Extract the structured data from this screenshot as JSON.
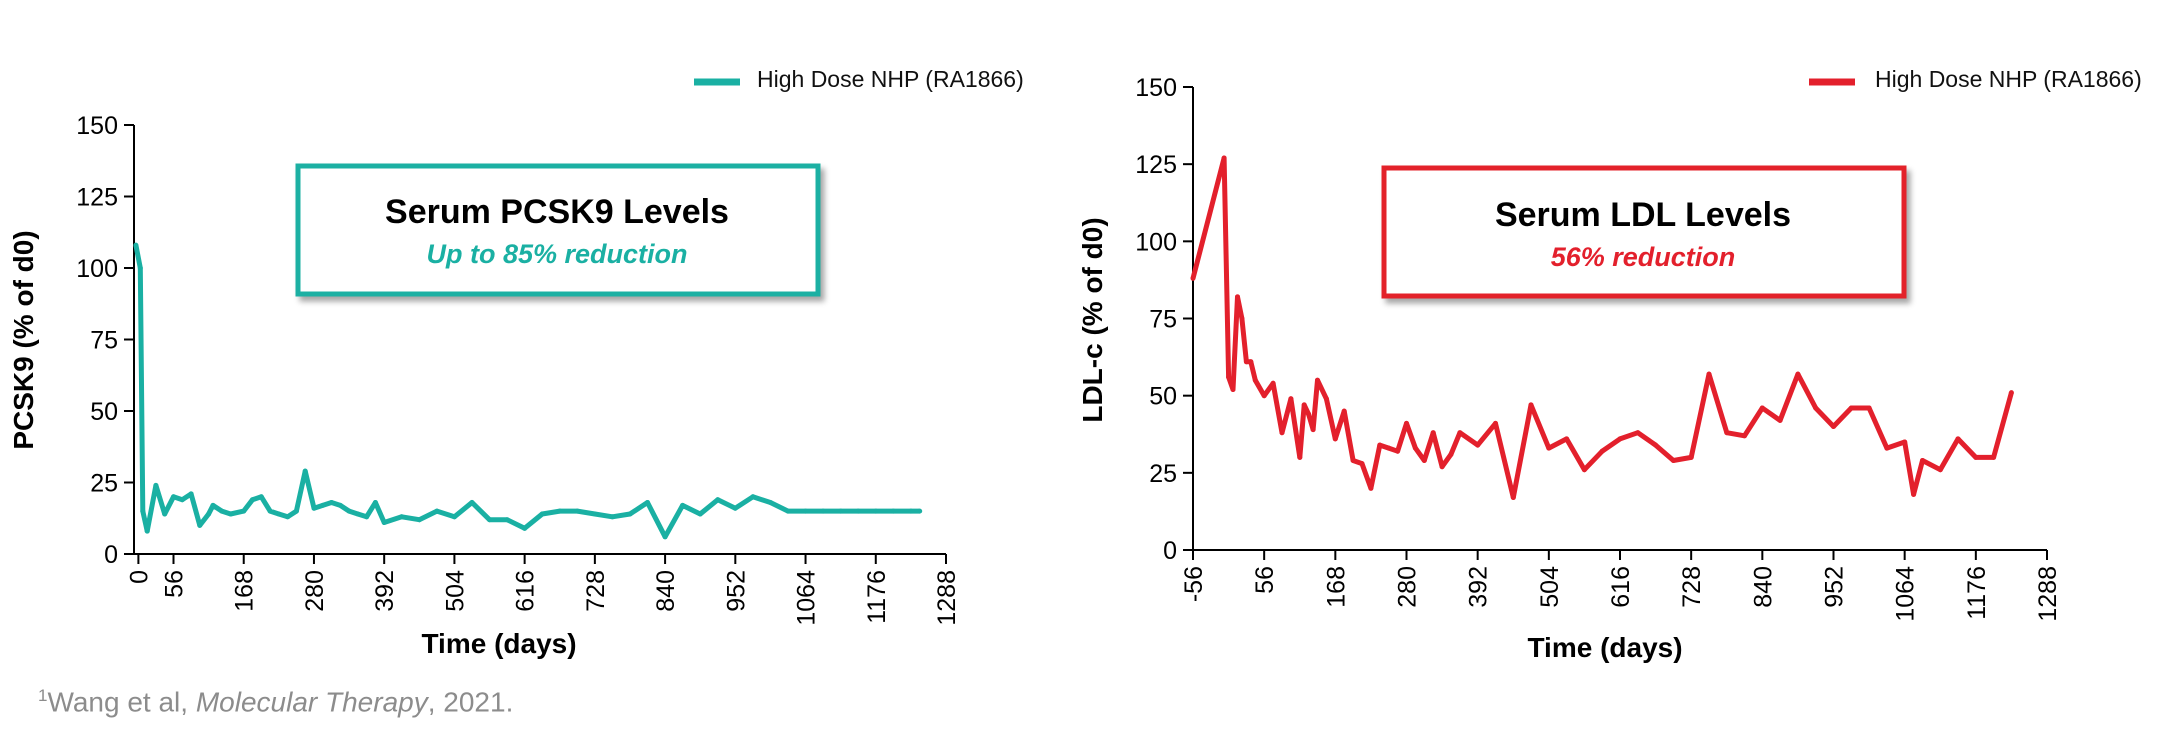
{
  "footnote": {
    "superscript": "1",
    "prefix": "Wang et al, ",
    "journal": "Molecular Therapy",
    "suffix": ", 2021."
  },
  "chart_data": [
    {
      "type": "line",
      "color": "#1ab0a3",
      "legend": "High Dose NHP (RA1866)",
      "callout": {
        "title": "Serum PCSK9 Levels",
        "subtitle": "Up to 85% reduction"
      },
      "xlabel": "Time (days)",
      "ylabel": "PCSK9 (% of d0)",
      "xlim": [
        -7,
        1288
      ],
      "ylim": [
        0,
        150
      ],
      "xticks": [
        0,
        56,
        168,
        280,
        392,
        504,
        616,
        728,
        840,
        952,
        1064,
        1176,
        1288
      ],
      "yticks": [
        0,
        25,
        50,
        75,
        100,
        125,
        150
      ],
      "x": [
        -4,
        3,
        7,
        14,
        28,
        42,
        56,
        70,
        84,
        98,
        112,
        119,
        133,
        147,
        168,
        182,
        196,
        210,
        224,
        238,
        252,
        266,
        280,
        294,
        308,
        322,
        336,
        350,
        364,
        378,
        392,
        420,
        448,
        476,
        504,
        532,
        560,
        588,
        616,
        644,
        672,
        700,
        728,
        756,
        784,
        812,
        840,
        868,
        896,
        924,
        952,
        980,
        1008,
        1036,
        1064,
        1092,
        1120,
        1148,
        1176,
        1204,
        1232,
        1246
      ],
      "y": [
        108,
        100,
        15,
        8,
        24,
        14,
        20,
        19,
        21,
        10,
        14,
        17,
        15,
        14,
        15,
        19,
        20,
        15,
        14,
        13,
        15,
        29,
        16,
        17,
        18,
        17,
        15,
        14,
        13,
        18,
        11,
        13,
        12,
        15,
        13,
        18,
        12,
        12,
        9,
        14,
        15,
        15,
        14,
        13,
        14,
        18,
        6,
        17,
        14,
        19,
        16,
        20,
        18,
        15,
        15,
        15,
        15,
        15,
        15,
        15,
        15,
        15
      ]
    },
    {
      "type": "line",
      "color": "#e3202c",
      "legend": "High Dose NHP (RA1866)",
      "callout": {
        "title": "Serum LDL Levels",
        "subtitle": "56% reduction"
      },
      "xlabel": "Time (days)",
      "ylabel": "LDL-c (% of d0)",
      "xlim": [
        -56,
        1288
      ],
      "ylim": [
        0,
        150
      ],
      "xticks": [
        -56,
        56,
        168,
        280,
        392,
        504,
        616,
        728,
        840,
        952,
        1064,
        1176,
        1288
      ],
      "yticks": [
        0,
        25,
        50,
        75,
        100,
        125,
        150
      ],
      "x": [
        -56,
        -7,
        0,
        7,
        14,
        21,
        28,
        35,
        42,
        56,
        70,
        84,
        98,
        112,
        119,
        126,
        133,
        140,
        154,
        168,
        182,
        196,
        210,
        224,
        238,
        252,
        266,
        280,
        294,
        308,
        322,
        336,
        350,
        364,
        392,
        420,
        448,
        476,
        504,
        532,
        560,
        588,
        616,
        644,
        672,
        700,
        728,
        756,
        784,
        812,
        840,
        868,
        896,
        924,
        952,
        980,
        1008,
        1036,
        1064,
        1078,
        1092,
        1120,
        1148,
        1176,
        1204,
        1232
      ],
      "y": [
        88,
        127,
        56,
        52,
        82,
        75,
        61,
        61,
        55,
        50,
        54,
        38,
        49,
        30,
        47,
        44,
        39,
        55,
        49,
        36,
        45,
        29,
        28,
        20,
        34,
        33,
        32,
        41,
        33,
        29,
        38,
        27,
        31,
        38,
        34,
        41,
        17,
        47,
        33,
        36,
        26,
        32,
        36,
        38,
        34,
        29,
        30,
        57,
        38,
        37,
        46,
        42,
        57,
        46,
        40,
        46,
        46,
        33,
        35,
        18,
        29,
        26,
        36,
        30,
        30,
        51
      ]
    }
  ]
}
